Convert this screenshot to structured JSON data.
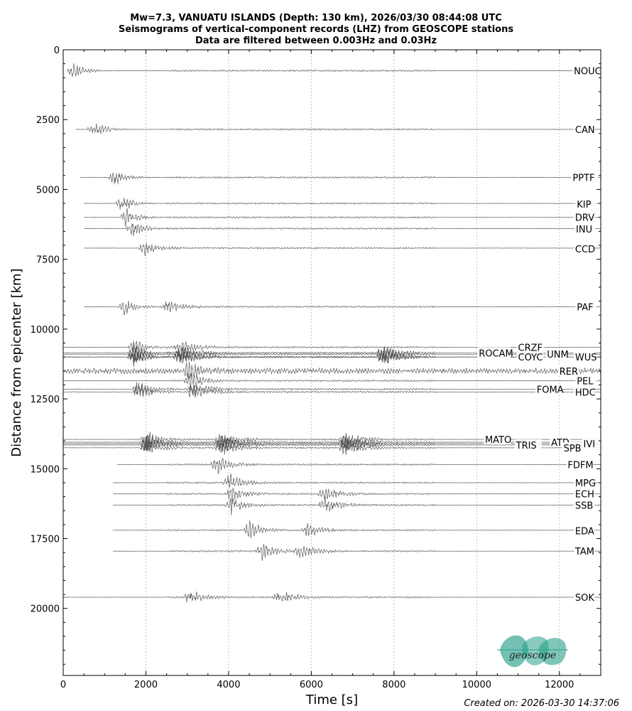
{
  "chart_data": {
    "type": "line",
    "title": [
      "Mw=7.3, VANUATU ISLANDS (Depth: 130 km), 2026/03/30 08:44:08 UTC",
      "Seismograms of vertical-component records (LHZ) from GEOSCOPE stations",
      "Data are filtered between 0.003Hz and 0.03Hz"
    ],
    "xlabel": "Time [s]",
    "ylabel": "Distance from epicenter [km]",
    "xlim": [
      0,
      13000
    ],
    "ylim": [
      22400,
      0
    ],
    "y_inverted": true,
    "xticks": [
      0,
      2000,
      4000,
      6000,
      8000,
      10000,
      12000
    ],
    "yticks": [
      0,
      2500,
      5000,
      7500,
      10000,
      12500,
      15000,
      17500,
      20000
    ],
    "grid": "vertical dotted",
    "series": [
      {
        "name": "NOUC",
        "distance": 750,
        "start": 100,
        "arrivals": [
          220
        ],
        "amp": 1.0
      },
      {
        "name": "CAN",
        "distance": 2850,
        "start": 300,
        "arrivals": [
          720
        ],
        "amp": 0.9
      },
      {
        "name": "PPTF",
        "distance": 4570,
        "start": 400,
        "arrivals": [
          1230
        ],
        "amp": 0.9
      },
      {
        "name": "KIP",
        "distance": 5500,
        "start": 500,
        "arrivals": [
          1400
        ],
        "amp": 1.0
      },
      {
        "name": "DRV",
        "distance": 6000,
        "start": 500,
        "arrivals": [
          1500
        ],
        "amp": 1.0
      },
      {
        "name": "INU",
        "distance": 6400,
        "start": 500,
        "arrivals": [
          1650
        ],
        "amp": 1.0
      },
      {
        "name": "CCD",
        "distance": 7100,
        "start": 500,
        "arrivals": [
          1950
        ],
        "amp": 0.9
      },
      {
        "name": "PAF",
        "distance": 9200,
        "start": 500,
        "arrivals": [
          1450,
          2450
        ],
        "amp": 0.9
      },
      {
        "name": "CRZF",
        "distance": 10650,
        "start": 0,
        "arrivals": [
          1700,
          2800
        ],
        "amp": 1.0
      },
      {
        "name": "ROCAM",
        "distance": 10850,
        "start": 0,
        "arrivals": [
          1700,
          2800,
          7700
        ],
        "amp": 1.0
      },
      {
        "name": "UNM",
        "distance": 10900,
        "start": 0,
        "arrivals": [
          1700,
          2800,
          7700
        ],
        "amp": 1.0
      },
      {
        "name": "COYC",
        "distance": 11000,
        "start": 0,
        "arrivals": [
          1700,
          2800,
          7700
        ],
        "amp": 1.0
      },
      {
        "name": "WUS",
        "distance": 11000,
        "start": 0,
        "arrivals": [
          1700,
          2800,
          7700
        ],
        "amp": 1.0
      },
      {
        "name": "RER",
        "distance": 11500,
        "start": 0,
        "arrivals": [
          3000
        ],
        "amp": 0.9,
        "noisy": true
      },
      {
        "name": "PEL",
        "distance": 11850,
        "start": 0,
        "arrivals": [
          3050
        ],
        "amp": 1.0
      },
      {
        "name": "FOMA",
        "distance": 12150,
        "start": 0,
        "arrivals": [
          1800,
          3100
        ],
        "amp": 1.0
      },
      {
        "name": "HDC",
        "distance": 12250,
        "start": 0,
        "arrivals": [
          1800,
          3100
        ],
        "amp": 1.0
      },
      {
        "name": "MATO",
        "distance": 13950,
        "start": 0,
        "arrivals": [
          2000,
          3800,
          6800
        ],
        "amp": 1.0
      },
      {
        "name": "ATD",
        "distance": 14050,
        "start": 0,
        "arrivals": [
          2000,
          3800,
          6800
        ],
        "amp": 1.0
      },
      {
        "name": "IVI",
        "distance": 14100,
        "start": 0,
        "arrivals": [
          2000,
          3800,
          6800
        ],
        "amp": 1.0
      },
      {
        "name": "TRIS",
        "distance": 14150,
        "start": 0,
        "arrivals": [
          2000,
          3800,
          6800
        ],
        "amp": 1.0
      },
      {
        "name": "SPB",
        "distance": 14250,
        "start": 0,
        "arrivals": [
          2000,
          3800,
          6800
        ],
        "amp": 1.0
      },
      {
        "name": "FDFM",
        "distance": 14850,
        "start": 1300,
        "arrivals": [
          3700
        ],
        "amp": 1.0
      },
      {
        "name": "MPG",
        "distance": 15500,
        "start": 1200,
        "arrivals": [
          4000
        ],
        "amp": 1.0
      },
      {
        "name": "ECH",
        "distance": 15900,
        "start": 1200,
        "arrivals": [
          4050,
          6300
        ],
        "amp": 1.0
      },
      {
        "name": "SSB",
        "distance": 16300,
        "start": 1200,
        "arrivals": [
          4050,
          6300
        ],
        "amp": 1.0
      },
      {
        "name": "EDA",
        "distance": 17200,
        "start": 1200,
        "arrivals": [
          4500,
          5900
        ],
        "amp": 0.9
      },
      {
        "name": "TAM",
        "distance": 17950,
        "start": 1200,
        "arrivals": [
          4800,
          5700
        ],
        "amp": 0.9
      },
      {
        "name": "SOK",
        "distance": 19600,
        "start": 0,
        "arrivals": [
          3050,
          5200
        ],
        "amp": 0.9
      }
    ],
    "labels": [
      {
        "name": "NOUC",
        "x": 12350,
        "y": 750
      },
      {
        "name": "CAN",
        "x": 12380,
        "y": 2850
      },
      {
        "name": "PPTF",
        "x": 12320,
        "y": 4570
      },
      {
        "name": "KIP",
        "x": 12420,
        "y": 5520
      },
      {
        "name": "DRV",
        "x": 12380,
        "y": 6000
      },
      {
        "name": "INU",
        "x": 12400,
        "y": 6420
      },
      {
        "name": "CCD",
        "x": 12380,
        "y": 7130
      },
      {
        "name": "PAF",
        "x": 12420,
        "y": 9200
      },
      {
        "name": "CRZF",
        "x": 11000,
        "y": 10650
      },
      {
        "name": "ROCAM",
        "x": 10050,
        "y": 10850
      },
      {
        "name": "UNM",
        "x": 11700,
        "y": 10900
      },
      {
        "name": "COYC",
        "x": 11000,
        "y": 11000
      },
      {
        "name": "WUS",
        "x": 12380,
        "y": 11000
      },
      {
        "name": "RER",
        "x": 12000,
        "y": 11500
      },
      {
        "name": "PEL",
        "x": 12420,
        "y": 11850
      },
      {
        "name": "FOMA",
        "x": 11450,
        "y": 12150
      },
      {
        "name": "HDC",
        "x": 12380,
        "y": 12250
      },
      {
        "name": "MATO",
        "x": 10200,
        "y": 13950
      },
      {
        "name": "ATD",
        "x": 11800,
        "y": 14050
      },
      {
        "name": "IVI",
        "x": 12580,
        "y": 14100
      },
      {
        "name": "TRIS",
        "x": 10950,
        "y": 14150
      },
      {
        "name": "SPB",
        "x": 12100,
        "y": 14250
      },
      {
        "name": "FDFM",
        "x": 12200,
        "y": 14850
      },
      {
        "name": "MPG",
        "x": 12380,
        "y": 15500
      },
      {
        "name": "ECH",
        "x": 12380,
        "y": 15900
      },
      {
        "name": "SSB",
        "x": 12380,
        "y": 16300
      },
      {
        "name": "EDA",
        "x": 12380,
        "y": 17220
      },
      {
        "name": "TAM",
        "x": 12380,
        "y": 17950
      },
      {
        "name": "SOK",
        "x": 12380,
        "y": 19600
      }
    ],
    "colors": {
      "trace": "#4a4a4a",
      "grid": "#b4b4b4",
      "logo": "#2aa08a"
    }
  },
  "logo_text": "geoscope",
  "created_on": "Created on: 2026-03-30 14:37:06"
}
